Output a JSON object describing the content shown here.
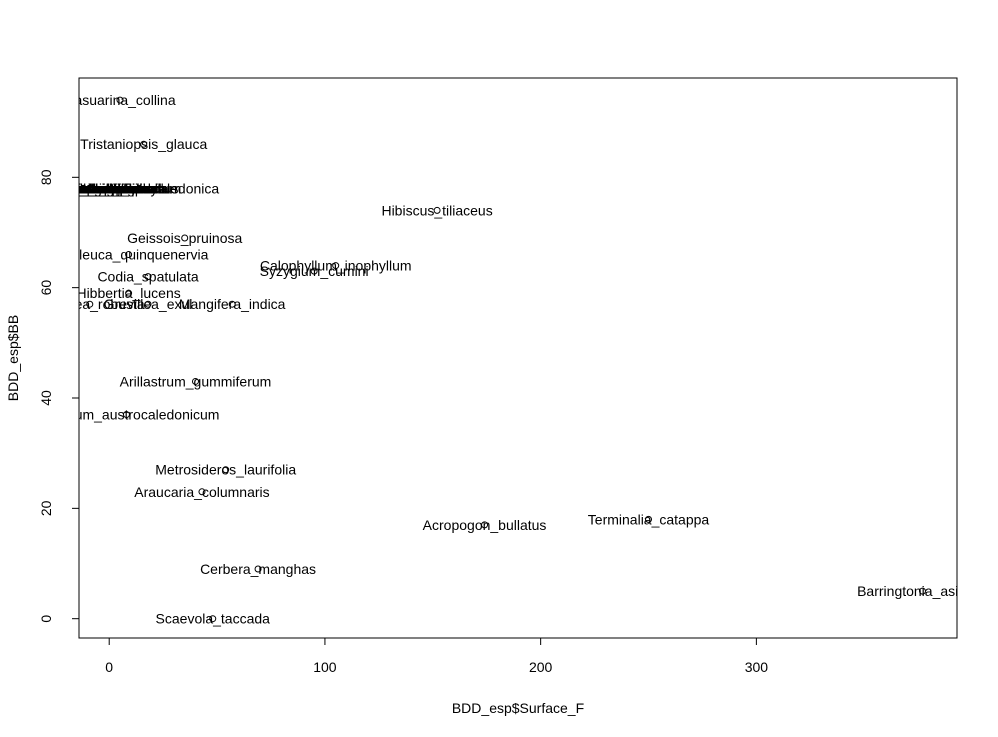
{
  "chart_data": {
    "type": "scatter",
    "title": "",
    "xlabel": "BDD_esp$Surface_F",
    "ylabel": "BDD_esp$BB",
    "xlim": [
      -14,
      393
    ],
    "ylim": [
      -3.5,
      98
    ],
    "x_ticks": [
      0,
      100,
      200,
      300
    ],
    "y_ticks": [
      0,
      20,
      40,
      60,
      80
    ],
    "grid": false,
    "legend": "none",
    "points": [
      {
        "label": "Casuarina_collina",
        "x": 5,
        "y": 94
      },
      {
        "label": "Tristaniopsis_glauca",
        "x": 16,
        "y": 86
      },
      {
        "label": "Dodonaea_viscosa",
        "x": -9,
        "y": 78
      },
      {
        "label": "Arytera_chartacea",
        "x": -9,
        "y": 78
      },
      {
        "label": "Cupaniopsis_glabra",
        "x": -12,
        "y": 78
      },
      {
        "label": "Schinus_terebinthifolius",
        "x": -12,
        "y": 78
      },
      {
        "label": "Xylosma_vincentii",
        "x": -9,
        "y": 78
      },
      {
        "label": "Podonephelium_homei",
        "x": -9,
        "y": 78
      },
      {
        "label": "Planchonella_cinerea",
        "x": -9,
        "y": 78
      },
      {
        "label": "Oxera_neriifolia",
        "x": -9,
        "y": 78
      },
      {
        "label": "Nephelium_lappaceum",
        "x": -9,
        "y": 78
      },
      {
        "label": "Psidium_guajava",
        "x": -9,
        "y": 78
      },
      {
        "label": "Ochrosia_elliptica",
        "x": -9,
        "y": 78
      },
      {
        "label": "Leucaena_leucocephala",
        "x": -9,
        "y": 78
      },
      {
        "label": "Archidendropsis_paivana",
        "x": -9,
        "y": 78
      },
      {
        "label": "Atractocarpus_heterophyllus",
        "x": -9,
        "y": 78
      },
      {
        "label": "Pittosporum_coccineum",
        "x": -9,
        "y": 78
      },
      {
        "label": "Cerbera_odollam",
        "x": -9,
        "y": 78
      },
      {
        "label": "Elaeodendron_curtipendulum",
        "x": -9,
        "y": 78
      },
      {
        "label": "Morinda_citrifolia",
        "x": -9,
        "y": 78
      },
      {
        "label": "Hernandia_cordigera",
        "x": -9,
        "y": 78
      },
      {
        "label": "Premna_serratifolia",
        "x": -9,
        "y": 78
      },
      {
        "label": "Glochidion_billardierei",
        "x": -9,
        "y": 78
      },
      {
        "label": "Alphitonia_neocaledonica",
        "x": 14,
        "y": 78
      },
      {
        "label": "Hibiscus_tiliaceus",
        "x": 152,
        "y": 74
      },
      {
        "label": "Geissois_pruinosa",
        "x": 35,
        "y": 69
      },
      {
        "label": "Melaleuca_quinquenervia",
        "x": 9,
        "y": 66
      },
      {
        "label": "Calophyllum_inophyllum",
        "x": 105,
        "y": 64
      },
      {
        "label": "Syzygium_cumini",
        "x": 95,
        "y": 63
      },
      {
        "label": "Codia_spatulata",
        "x": 18,
        "y": 62
      },
      {
        "label": "Hibbertia_lucens",
        "x": 9,
        "y": 59
      },
      {
        "label": "Grevillea_robusta",
        "x": -9,
        "y": 57
      },
      {
        "label": "Grevillea_exul",
        "x": 18,
        "y": 57
      },
      {
        "label": "Mangifera_indica",
        "x": 57,
        "y": 57
      },
      {
        "label": "Arillastrum_gummiferum",
        "x": 40,
        "y": 43
      },
      {
        "label": "Syzygium_austrocaledonicum",
        "x": 8,
        "y": 37
      },
      {
        "label": "Metrosideros_laurifolia",
        "x": 54,
        "y": 27
      },
      {
        "label": "Araucaria_columnaris",
        "x": 43,
        "y": 23
      },
      {
        "label": "Terminalia_catappa",
        "x": 250,
        "y": 18
      },
      {
        "label": "Acropogon_bullatus",
        "x": 174,
        "y": 17
      },
      {
        "label": "Cerbera_manghas",
        "x": 69,
        "y": 9
      },
      {
        "label": "Barringtonia_asiatica",
        "x": 377,
        "y": 5
      },
      {
        "label": "Scaevola_taccada",
        "x": 48,
        "y": 0
      }
    ]
  }
}
